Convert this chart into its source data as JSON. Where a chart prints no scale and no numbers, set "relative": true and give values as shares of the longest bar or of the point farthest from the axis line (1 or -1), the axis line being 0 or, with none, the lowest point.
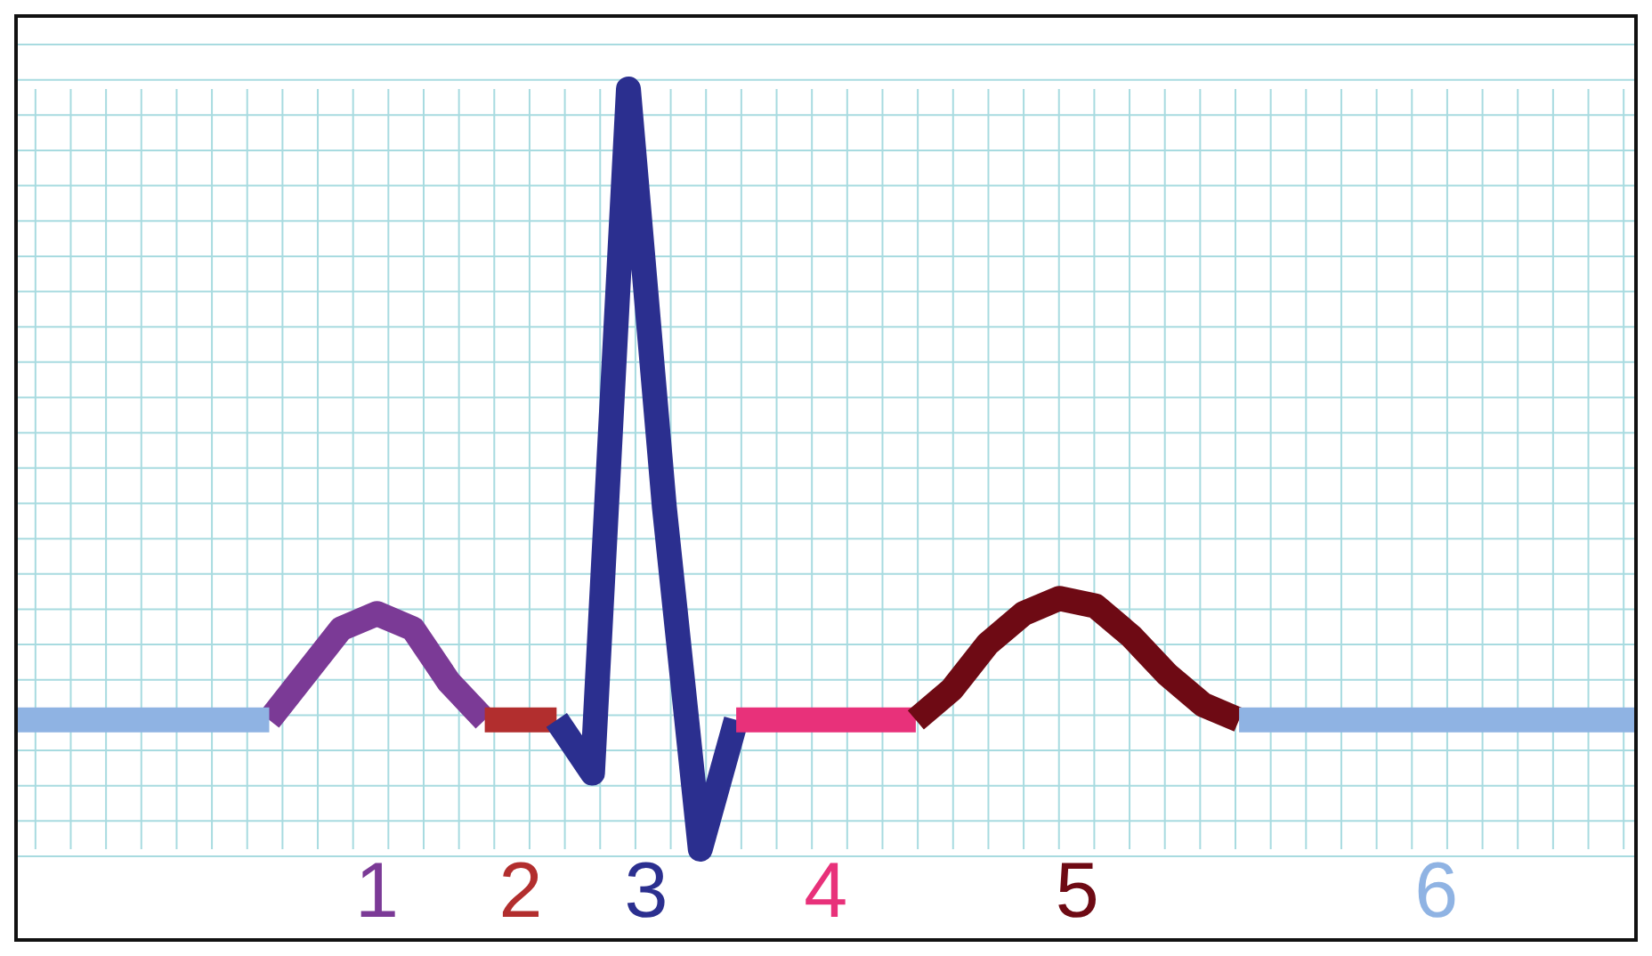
{
  "chart_data": {
    "type": "line",
    "relative": true,
    "grid": true,
    "line_style": "solid",
    "legend": false,
    "categories": [
      null,
      null,
      null,
      null,
      null,
      null,
      null,
      null,
      null,
      null,
      null,
      null,
      null,
      null,
      null,
      null,
      null,
      null,
      null,
      null,
      null,
      null,
      null,
      null,
      null,
      null,
      null,
      null,
      null,
      null,
      null,
      null,
      null,
      null,
      null,
      null,
      null,
      null,
      null,
      null,
      null,
      null,
      null,
      null,
      null,
      null
    ],
    "series": [
      {
        "name": "1",
        "color": "#7b3a96",
        "values": [
          null,
          null,
          null,
          null,
          null,
          null,
          null,
          0.17,
          0.23,
          0.29,
          0.31,
          0.29,
          0.22,
          0.17,
          null,
          null,
          null,
          null,
          null,
          null,
          null,
          null,
          null,
          null,
          null,
          null,
          null,
          null,
          null,
          null,
          null,
          null,
          null,
          null,
          null,
          null,
          null,
          null,
          null,
          null,
          null,
          null,
          null,
          null,
          null,
          null
        ]
      },
      {
        "name": "2",
        "color": "#b22e2e",
        "values": [
          null,
          null,
          null,
          null,
          null,
          null,
          null,
          null,
          null,
          null,
          null,
          null,
          null,
          0.17,
          0.17,
          0.17,
          null,
          null,
          null,
          null,
          null,
          null,
          null,
          null,
          null,
          null,
          null,
          null,
          null,
          null,
          null,
          null,
          null,
          null,
          null,
          null,
          null,
          null,
          null,
          null,
          null,
          null,
          null,
          null,
          null,
          null
        ]
      },
      {
        "name": "3",
        "color": "#2b2f8f",
        "values": [
          null,
          null,
          null,
          null,
          null,
          null,
          null,
          null,
          null,
          null,
          null,
          null,
          null,
          null,
          null,
          0.17,
          0.1,
          1,
          0.45,
          0,
          0.17,
          null,
          null,
          null,
          null,
          null,
          null,
          null,
          null,
          null,
          null,
          null,
          null,
          null,
          null,
          null,
          null,
          null,
          null,
          null,
          null,
          null,
          null,
          null,
          null,
          null
        ]
      },
      {
        "name": "4",
        "color": "#e8317a",
        "values": [
          null,
          null,
          null,
          null,
          null,
          null,
          null,
          null,
          null,
          null,
          null,
          null,
          null,
          null,
          null,
          null,
          null,
          null,
          null,
          null,
          0.17,
          0.17,
          0.17,
          0.17,
          0.17,
          0.17,
          null,
          null,
          null,
          null,
          null,
          null,
          null,
          null,
          null,
          null,
          null,
          null,
          null,
          null,
          null,
          null,
          null,
          null,
          null,
          null
        ]
      },
      {
        "name": "5",
        "color": "#6e0a14",
        "values": [
          null,
          null,
          null,
          null,
          null,
          null,
          null,
          null,
          null,
          null,
          null,
          null,
          null,
          null,
          null,
          null,
          null,
          null,
          null,
          null,
          null,
          null,
          null,
          null,
          null,
          0.17,
          0.21,
          0.27,
          0.31,
          0.33,
          0.32,
          0.28,
          0.23,
          0.19,
          0.17,
          null,
          null,
          null,
          null,
          null,
          null,
          null,
          null,
          null,
          null,
          null
        ]
      },
      {
        "color": "#8fb3e3",
        "values": [
          0.17,
          0.17,
          0.17,
          0.17,
          0.17,
          0.17,
          0.17,
          0.17,
          null,
          null,
          null,
          null,
          null,
          null,
          null,
          null,
          null,
          null,
          null,
          null,
          null,
          null,
          null,
          null,
          null,
          null,
          null,
          null,
          null,
          null,
          null,
          null,
          null,
          null,
          null,
          null,
          null,
          null,
          null,
          null,
          null,
          null,
          null,
          null,
          null,
          null
        ]
      },
      {
        "name": "6",
        "color": "#8fb3e3",
        "values": [
          null,
          null,
          null,
          null,
          null,
          null,
          null,
          null,
          null,
          null,
          null,
          null,
          null,
          null,
          null,
          null,
          null,
          null,
          null,
          null,
          null,
          null,
          null,
          null,
          null,
          null,
          null,
          null,
          null,
          null,
          null,
          null,
          null,
          null,
          0.17,
          0.17,
          0.17,
          0.17,
          0.17,
          0.17,
          0.17,
          0.17,
          0.17,
          0.17,
          0.17,
          0.17
        ]
      }
    ]
  }
}
